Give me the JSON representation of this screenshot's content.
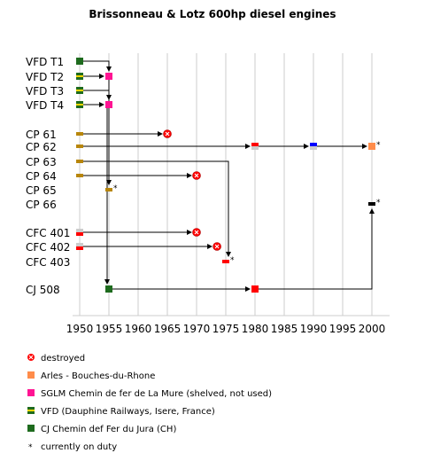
{
  "title": "Brissonneau & Lotz 600hp diesel engines",
  "units": [
    {
      "label": "VFD T1"
    },
    {
      "label": "VFD T2"
    },
    {
      "label": "VFD T3"
    },
    {
      "label": "VFD T4"
    },
    {
      "label": "CP 61"
    },
    {
      "label": "CP 62"
    },
    {
      "label": "CP 63"
    },
    {
      "label": "CP 64"
    },
    {
      "label": "CP 65"
    },
    {
      "label": "CP 66"
    },
    {
      "label": "CFC 401"
    },
    {
      "label": "CFC 402"
    },
    {
      "label": "CFC 403"
    },
    {
      "label": "CJ 508"
    }
  ],
  "years": [
    1950,
    1955,
    1960,
    1965,
    1970,
    1975,
    1980,
    1985,
    1990,
    1995,
    2000
  ],
  "colors": {
    "vfd": "#1e6b1e",
    "vfd_stripe": "#ffd700",
    "sglm": "#ff1493",
    "cp": "#b8860b",
    "cfc": "#ff0000",
    "cfc_alt": "#cccccc",
    "cj": "#1e6b1e",
    "arles": "#ff8c4a",
    "blue": "#0000ff",
    "black": "#000000",
    "destroyed": "#ff0000",
    "axis_grid": "#cccccc"
  },
  "legend": [
    {
      "icon": "destroyed-icon",
      "text": "destroyed"
    },
    {
      "icon": "arles-square-icon",
      "text": "Arles - Bouches-du-Rhone"
    },
    {
      "icon": "sglm-square-icon",
      "text": "SGLM  Chemin de fer de La Mure (shelved, not used)"
    },
    {
      "icon": "vfd-stripe-icon",
      "text": "VFD (Dauphine Railways, Isere, France)"
    },
    {
      "icon": "cj-square-icon",
      "text": "CJ Chemin def Fer du Jura (CH)"
    },
    {
      "icon": "star-icon",
      "symbol": "*",
      "text": "currently on duty"
    }
  ],
  "star": "*"
}
